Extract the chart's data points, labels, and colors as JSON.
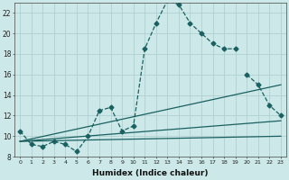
{
  "xlabel": "Humidex (Indice chaleur)",
  "bg_color": "#cce8e8",
  "grid_color": "#b0d0d0",
  "line_color": "#1a6060",
  "xlim": [
    -0.5,
    23.5
  ],
  "ylim": [
    8,
    23
  ],
  "xticks": [
    0,
    1,
    2,
    3,
    4,
    5,
    6,
    7,
    8,
    9,
    10,
    11,
    12,
    13,
    14,
    15,
    16,
    17,
    18,
    19,
    20,
    21,
    22,
    23
  ],
  "yticks": [
    8,
    10,
    12,
    14,
    16,
    18,
    20,
    22
  ],
  "series": [
    {
      "x": [
        0,
        1,
        2,
        3,
        4,
        5,
        6,
        7,
        8,
        9,
        10,
        11,
        12,
        13,
        14,
        15,
        16,
        17,
        18,
        19
      ],
      "y": [
        10.5,
        9.2,
        9.0,
        9.5,
        9.2,
        8.5,
        10.0,
        12.5,
        12.8,
        10.5,
        11.0,
        18.5,
        21.0,
        23.2,
        22.8,
        21.0,
        20.0,
        19.0,
        18.5,
        18.5
      ],
      "marker": "D",
      "markersize": 2.5,
      "linewidth": 0.9,
      "linestyle": "--"
    },
    {
      "x": [
        20,
        21,
        22,
        23
      ],
      "y": [
        16.0,
        15.0,
        13.0,
        12.0
      ],
      "marker": "D",
      "markersize": 2.5,
      "linewidth": 0.9,
      "linestyle": "--"
    },
    {
      "x": [
        0,
        23
      ],
      "y": [
        9.5,
        10.0
      ],
      "marker": null,
      "markersize": 0,
      "linewidth": 0.9,
      "linestyle": "-"
    },
    {
      "x": [
        0,
        23
      ],
      "y": [
        9.5,
        15.0
      ],
      "marker": null,
      "markersize": 0,
      "linewidth": 0.9,
      "linestyle": "-"
    },
    {
      "x": [
        0,
        23
      ],
      "y": [
        9.5,
        11.5
      ],
      "marker": null,
      "markersize": 0,
      "linewidth": 0.9,
      "linestyle": "-"
    }
  ]
}
